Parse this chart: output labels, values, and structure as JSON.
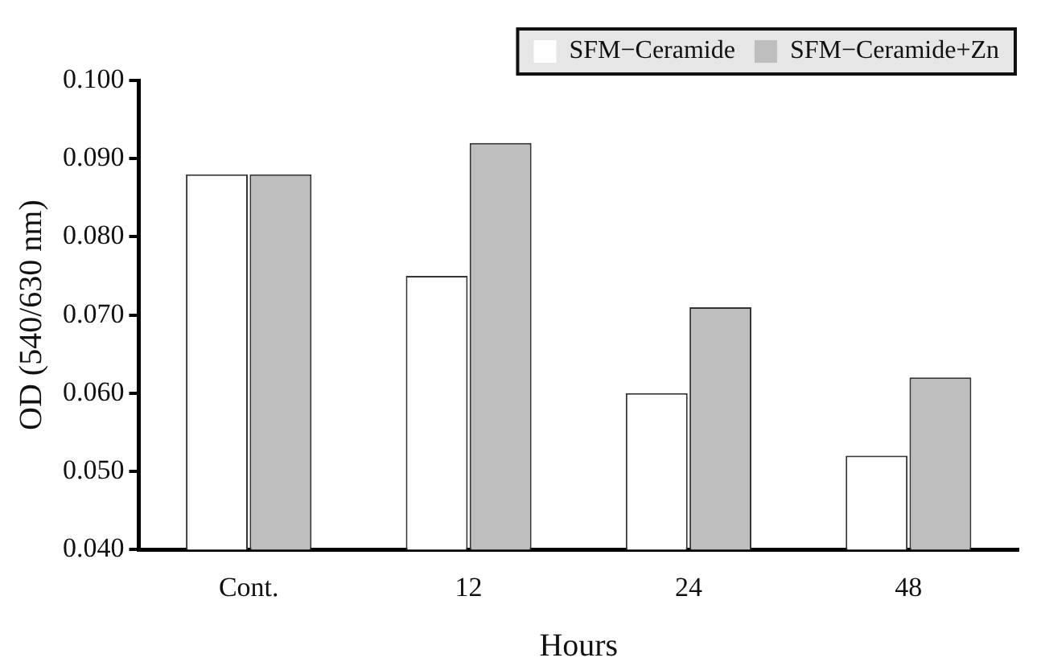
{
  "chart_data": {
    "type": "bar",
    "xlabel": "Hours",
    "ylabel": "OD (540/630 nm)",
    "categories": [
      "Cont.",
      "12",
      "24",
      "48"
    ],
    "series": [
      {
        "name": "SFM−Ceramide",
        "color": "#ffffff",
        "values": [
          0.088,
          0.075,
          0.06,
          0.052
        ]
      },
      {
        "name": "SFM−Ceramide+Zn",
        "color": "#bebebe",
        "values": [
          0.088,
          0.092,
          0.071,
          0.062
        ]
      }
    ],
    "ylim": [
      0.04,
      0.1
    ],
    "yticks": [
      {
        "value": 0.04,
        "label": "0.040"
      },
      {
        "value": 0.05,
        "label": "0.050"
      },
      {
        "value": 0.06,
        "label": "0.060"
      },
      {
        "value": 0.07,
        "label": "0.070"
      },
      {
        "value": 0.08,
        "label": "0.080"
      },
      {
        "value": 0.09,
        "label": "0.090"
      },
      {
        "value": 0.1,
        "label": "0.100"
      }
    ],
    "grid": false,
    "legend": "top right"
  }
}
